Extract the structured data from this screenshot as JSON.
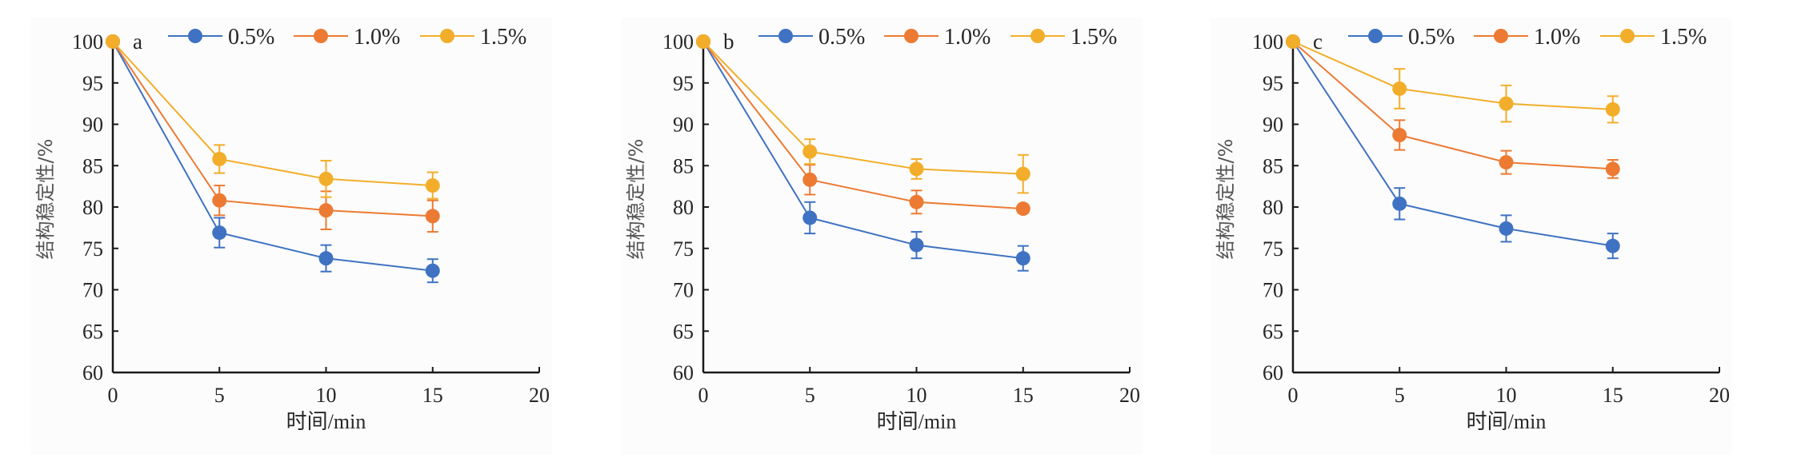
{
  "chart_data": [
    {
      "type": "line",
      "panel_label": "a",
      "xlabel": "时间/min",
      "ylabel": "结构稳定性/%",
      "xlim": [
        0,
        20
      ],
      "ylim": [
        60,
        100
      ],
      "xticks": [
        0,
        5,
        10,
        15,
        20
      ],
      "yticks": [
        60,
        65,
        70,
        75,
        80,
        85,
        90,
        95,
        100
      ],
      "grid": false,
      "legend_position": "top",
      "x": [
        0,
        5,
        10,
        15
      ],
      "series": [
        {
          "name": "0.5%",
          "color": "#3f72c2",
          "values": [
            100,
            76.9,
            73.8,
            72.3
          ],
          "errors": [
            0,
            1.8,
            1.6,
            1.4
          ]
        },
        {
          "name": "1.0%",
          "color": "#ec7a33",
          "values": [
            100,
            80.8,
            79.6,
            78.9
          ],
          "errors": [
            0,
            1.8,
            2.3,
            1.9
          ]
        },
        {
          "name": "1.5%",
          "color": "#f2ae2a",
          "values": [
            100,
            85.8,
            83.4,
            82.6
          ],
          "errors": [
            0,
            1.7,
            2.2,
            1.6
          ]
        }
      ]
    },
    {
      "type": "line",
      "panel_label": "b",
      "xlabel": "时间/min",
      "ylabel": "结构稳定性/%",
      "xlim": [
        0,
        20
      ],
      "ylim": [
        60,
        100
      ],
      "xticks": [
        0,
        5,
        10,
        15,
        20
      ],
      "yticks": [
        60,
        65,
        70,
        75,
        80,
        85,
        90,
        95,
        100
      ],
      "grid": false,
      "legend_position": "top",
      "x": [
        0,
        5,
        10,
        15
      ],
      "series": [
        {
          "name": "0.5%",
          "color": "#3f72c2",
          "values": [
            100,
            78.7,
            75.4,
            73.8
          ],
          "errors": [
            0,
            1.9,
            1.6,
            1.5
          ]
        },
        {
          "name": "1.0%",
          "color": "#ec7a33",
          "values": [
            100,
            83.3,
            80.6,
            79.8
          ],
          "errors": [
            0,
            1.8,
            1.4,
            0.5
          ]
        },
        {
          "name": "1.5%",
          "color": "#f2ae2a",
          "values": [
            100,
            86.7,
            84.6,
            84.0
          ],
          "errors": [
            0,
            1.5,
            1.2,
            2.3
          ]
        }
      ]
    },
    {
      "type": "line",
      "panel_label": "c",
      "xlabel": "时间/min",
      "ylabel": "结构稳定性/%",
      "xlim": [
        0,
        20
      ],
      "ylim": [
        60,
        100
      ],
      "xticks": [
        0,
        5,
        10,
        15,
        20
      ],
      "yticks": [
        60,
        65,
        70,
        75,
        80,
        85,
        90,
        95,
        100
      ],
      "grid": false,
      "legend_position": "top",
      "x": [
        0,
        5,
        10,
        15
      ],
      "series": [
        {
          "name": "0.5%",
          "color": "#3f72c2",
          "values": [
            100,
            80.4,
            77.4,
            75.3
          ],
          "errors": [
            0,
            1.9,
            1.6,
            1.5
          ]
        },
        {
          "name": "1.0%",
          "color": "#ec7a33",
          "values": [
            100,
            88.7,
            85.4,
            84.6
          ],
          "errors": [
            0,
            1.8,
            1.4,
            1.1
          ]
        },
        {
          "name": "1.5%",
          "color": "#f2ae2a",
          "values": [
            100,
            94.3,
            92.5,
            91.8
          ],
          "errors": [
            0,
            2.4,
            2.2,
            1.6
          ]
        }
      ]
    }
  ]
}
